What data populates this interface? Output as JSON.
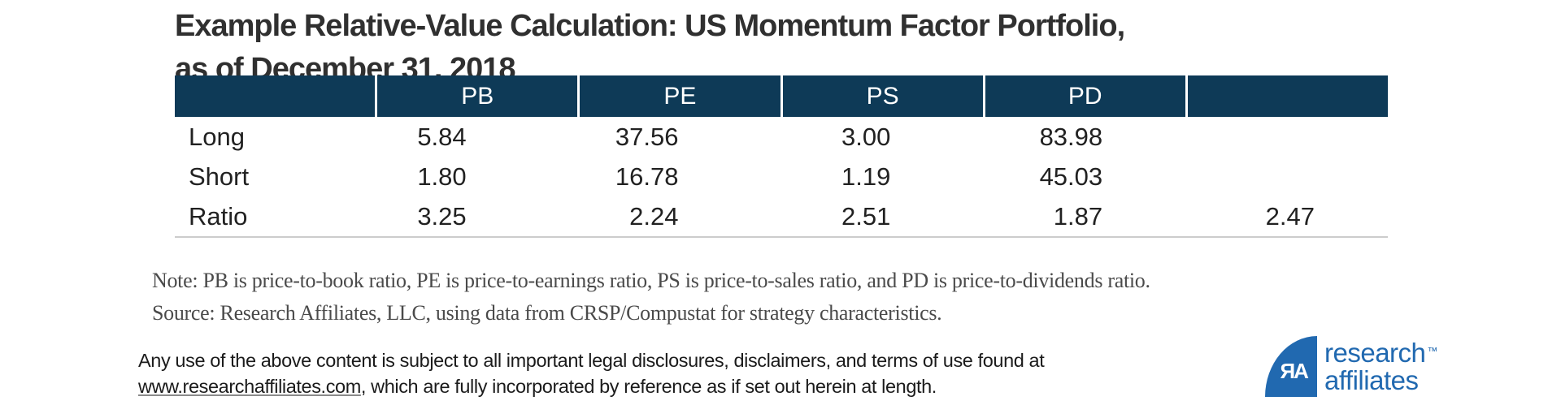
{
  "title": {
    "line1": "Example Relative-Value Calculation: US Momentum Factor Portfolio,",
    "line2": "as of December 31, 2018"
  },
  "table": {
    "columns": [
      "",
      "PB",
      "PE",
      "PS",
      "PD",
      ""
    ],
    "rows": [
      {
        "label": "Long",
        "values": [
          "5.84",
          "37.56",
          "3.00",
          "83.98",
          ""
        ]
      },
      {
        "label": "Short",
        "values": [
          "1.80",
          "16.78",
          "1.19",
          "45.03",
          ""
        ]
      },
      {
        "label": "Ratio",
        "values": [
          "3.25",
          "2.24",
          "2.51",
          "1.87",
          "2.47"
        ]
      }
    ]
  },
  "chart_data": {
    "type": "table",
    "title": "Example Relative-Value Calculation: US Momentum Factor Portfolio, as of December 31, 2018",
    "columns": [
      "",
      "PB",
      "PE",
      "PS",
      "PD",
      ""
    ],
    "rows": [
      [
        "Long",
        5.84,
        37.56,
        3.0,
        83.98,
        null
      ],
      [
        "Short",
        1.8,
        16.78,
        1.19,
        45.03,
        null
      ],
      [
        "Ratio",
        3.25,
        2.24,
        2.51,
        1.87,
        2.47
      ]
    ],
    "note": "Note: PB is price-to-book ratio, PE is price-to-earnings ratio, PS is price-to-sales ratio, and PD is price-to-dividends ratio.",
    "source": "Source: Research Affiliates, LLC, using data from CRSP/Compustat for strategy characteristics."
  },
  "notes": {
    "note": "Note: PB is price-to-book ratio, PE is price-to-earnings ratio, PS is price-to-sales ratio, and PD is price-to-dividends ratio.",
    "source": "Source: Research Affiliates, LLC, using data from CRSP/Compustat for strategy characteristics."
  },
  "legal": {
    "line1": "Any use of the above content is subject to all important legal disclosures, disclaimers, and terms of use found at",
    "link": "www.researchaffiliates.com",
    "after": ", which are fully incorporated by reference as if set out herein at length."
  },
  "logo": {
    "monogram": "ЯA",
    "line1": "research",
    "tm": "™",
    "line2": "affiliates"
  },
  "colors": {
    "header_navy": "#0e3a57",
    "logo_blue": "#2169b0",
    "separator_gray": "#cccccc",
    "title_text": "#303030",
    "body_text": "#212121",
    "note_text": "#4a4a4a"
  }
}
